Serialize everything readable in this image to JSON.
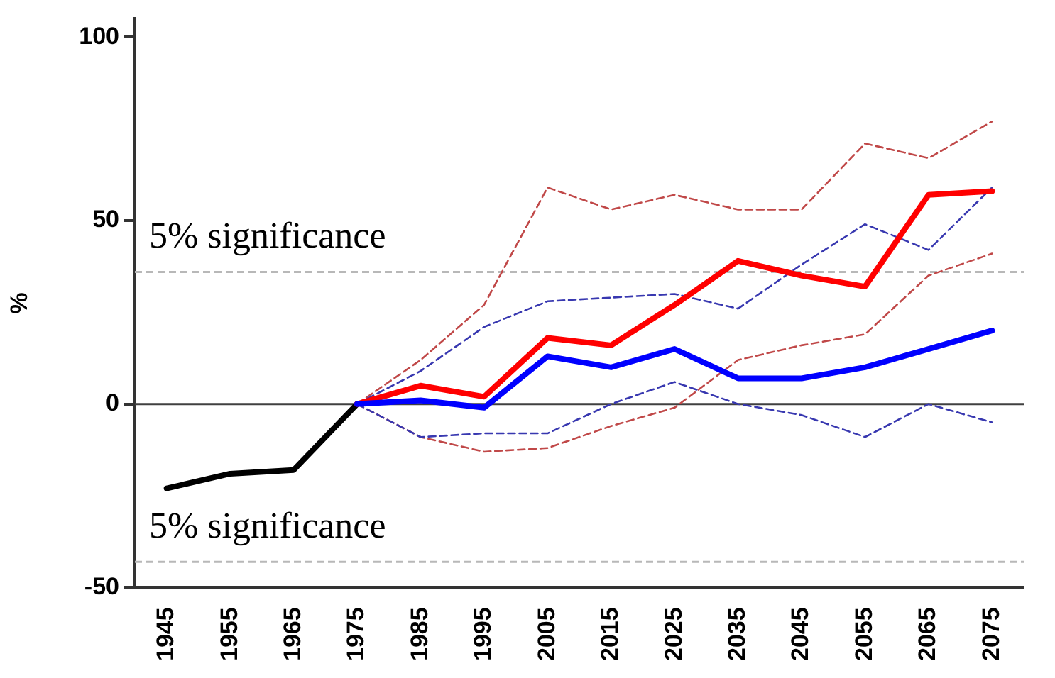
{
  "chart_data": {
    "type": "line",
    "ylabel": "%",
    "categories": [
      "1945",
      "1955",
      "1965",
      "1975",
      "1985",
      "1995",
      "2005",
      "2015",
      "2025",
      "2035",
      "2045",
      "2055",
      "2065",
      "2075"
    ],
    "series": [
      {
        "color": "#000000",
        "values": [
          -23,
          -19,
          -18,
          0,
          null,
          null,
          null,
          null,
          null,
          null,
          null,
          null,
          null,
          null
        ]
      },
      {
        "color": "#c04848",
        "line_style": "dashed",
        "values": [
          null,
          null,
          null,
          0,
          12,
          27,
          59,
          53,
          57,
          53,
          53,
          71,
          67,
          77
        ]
      },
      {
        "color": "#c04848",
        "line_style": "dashed",
        "values": [
          null,
          null,
          null,
          0,
          -9,
          -13,
          -12,
          -6,
          -1,
          12,
          16,
          19,
          35,
          41
        ]
      },
      {
        "color": "#3838b0",
        "line_style": "dashed",
        "values": [
          null,
          null,
          null,
          0,
          9,
          21,
          28,
          29,
          30,
          26,
          38,
          49,
          42,
          59
        ]
      },
      {
        "color": "#3838b0",
        "line_style": "dashed",
        "values": [
          null,
          null,
          null,
          0,
          -9,
          -8,
          -8,
          0,
          6,
          0,
          -3,
          -9,
          0,
          -5
        ]
      },
      {
        "color": "#ff0000",
        "values": [
          null,
          null,
          null,
          0,
          5,
          2,
          18,
          16,
          27,
          39,
          35,
          32,
          57,
          58
        ]
      },
      {
        "color": "#0000ff",
        "values": [
          null,
          null,
          null,
          0,
          1,
          -1,
          13,
          10,
          15,
          7,
          7,
          10,
          15,
          20
        ]
      }
    ],
    "ylim": [
      -50,
      105
    ],
    "yticks": [
      -50,
      0,
      50,
      100
    ],
    "grid": false,
    "legend": false,
    "line_style": "solid",
    "marker": "none",
    "ref_lines": [
      {
        "axis": "y",
        "value": 0,
        "color": "#404040",
        "line_style": "solid"
      },
      {
        "axis": "y",
        "value": 36,
        "label": "5% significance",
        "color": "#b8b8b8",
        "line_style": "dashed"
      },
      {
        "axis": "y",
        "value": -43,
        "label": "5% significance",
        "color": "#b8b8b8",
        "line_style": "dashed"
      }
    ]
  }
}
